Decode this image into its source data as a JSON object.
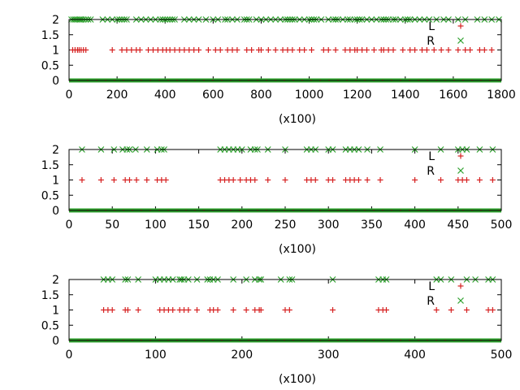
{
  "colors": {
    "L": "#d62020",
    "R": "#2ca02c",
    "frame": "#000000"
  },
  "chart_data": [
    {
      "type": "scatter",
      "xlabel": "(x100)",
      "xlim": [
        0,
        1800
      ],
      "ylim": [
        0,
        2
      ],
      "xticks": [
        "0",
        "200",
        "400",
        "600",
        "800",
        "1000",
        "1200",
        "1400",
        "1600",
        "1800"
      ],
      "yticks": [
        "0",
        "0.5",
        "1",
        "1.5",
        "2"
      ],
      "legend_position": "top-right",
      "series": [
        {
          "name": "L",
          "marker": "plus",
          "y": 1,
          "x": [
            15,
            25,
            35,
            42,
            50,
            60,
            70,
            180,
            220,
            240,
            260,
            280,
            295,
            330,
            350,
            370,
            390,
            405,
            420,
            440,
            460,
            480,
            500,
            520,
            540,
            580,
            610,
            630,
            660,
            680,
            700,
            740,
            760,
            790,
            800,
            830,
            860,
            890,
            910,
            930,
            960,
            980,
            1010,
            1060,
            1080,
            1110,
            1150,
            1170,
            1190,
            1200,
            1220,
            1240,
            1270,
            1300,
            1310,
            1330,
            1350,
            1390,
            1420,
            1440,
            1470,
            1490,
            1520,
            1550,
            1580,
            1620,
            1650,
            1670,
            1710,
            1730,
            1760
          ]
        },
        {
          "name": "R",
          "marker": "cross",
          "y": 2,
          "x": [
            10,
            18,
            25,
            32,
            40,
            46,
            52,
            60,
            70,
            80,
            90,
            140,
            160,
            180,
            200,
            210,
            220,
            230,
            240,
            280,
            300,
            320,
            340,
            360,
            380,
            390,
            400,
            410,
            420,
            430,
            440,
            480,
            500,
            520,
            540,
            570,
            600,
            620,
            650,
            660,
            680,
            700,
            730,
            740,
            750,
            780,
            800,
            820,
            840,
            860,
            880,
            900,
            910,
            920,
            930,
            940,
            960,
            980,
            1000,
            1010,
            1020,
            1030,
            1050,
            1080,
            1100,
            1110,
            1120,
            1140,
            1160,
            1170,
            1190,
            1200,
            1210,
            1220,
            1240,
            1260,
            1280,
            1300,
            1310,
            1320,
            1330,
            1350,
            1360,
            1380,
            1400,
            1410,
            1420,
            1440,
            1460,
            1480,
            1500,
            1530,
            1560,
            1580,
            1620,
            1650,
            1700,
            1730,
            1760,
            1790
          ]
        }
      ]
    },
    {
      "type": "scatter",
      "xlabel": "(x100)",
      "xlim": [
        0,
        500
      ],
      "ylim": [
        0,
        2
      ],
      "xticks": [
        "0",
        "50",
        "100",
        "150",
        "200",
        "250",
        "300",
        "350",
        "400",
        "450",
        "500"
      ],
      "yticks": [
        "0",
        "0.5",
        "1",
        "1.5",
        "2"
      ],
      "legend_position": "top-right",
      "series": [
        {
          "name": "L",
          "marker": "plus",
          "y": 1,
          "x": [
            15,
            37,
            52,
            65,
            70,
            78,
            90,
            102,
            107,
            112,
            175,
            180,
            185,
            190,
            198,
            205,
            210,
            215,
            230,
            250,
            275,
            280,
            285,
            300,
            305,
            320,
            325,
            330,
            335,
            345,
            360,
            400,
            430,
            450,
            455,
            460,
            475,
            490
          ]
        },
        {
          "name": "R",
          "marker": "cross",
          "y": 2,
          "x": [
            15,
            37,
            52,
            62,
            67,
            70,
            77,
            90,
            102,
            107,
            110,
            175,
            180,
            185,
            190,
            195,
            200,
            210,
            215,
            218,
            230,
            250,
            275,
            280,
            285,
            300,
            305,
            320,
            325,
            330,
            335,
            345,
            360,
            400,
            430,
            450,
            455,
            460,
            475,
            490
          ]
        }
      ]
    },
    {
      "type": "scatter",
      "xlabel": "(x100)",
      "xlim": [
        0,
        500
      ],
      "ylim": [
        0,
        2
      ],
      "xticks": [
        "0",
        "100",
        "200",
        "300",
        "400",
        "500"
      ],
      "yticks": [
        "0",
        "0.5",
        "1",
        "1.5",
        "2"
      ],
      "legend_position": "top-right",
      "series": [
        {
          "name": "L",
          "marker": "plus",
          "y": 1,
          "x": [
            40,
            45,
            50,
            65,
            68,
            80,
            105,
            110,
            115,
            120,
            128,
            133,
            138,
            148,
            163,
            167,
            172,
            190,
            205,
            215,
            220,
            222,
            250,
            255,
            305,
            358,
            363,
            367,
            425,
            442,
            460,
            485,
            490
          ]
        },
        {
          "name": "R",
          "marker": "cross",
          "y": 2,
          "x": [
            40,
            45,
            50,
            65,
            68,
            80,
            100,
            105,
            110,
            115,
            120,
            128,
            130,
            133,
            138,
            148,
            160,
            163,
            167,
            172,
            190,
            205,
            215,
            220,
            222,
            245,
            255,
            258,
            305,
            358,
            363,
            367,
            425,
            430,
            442,
            460,
            470,
            485,
            490
          ]
        }
      ]
    }
  ]
}
